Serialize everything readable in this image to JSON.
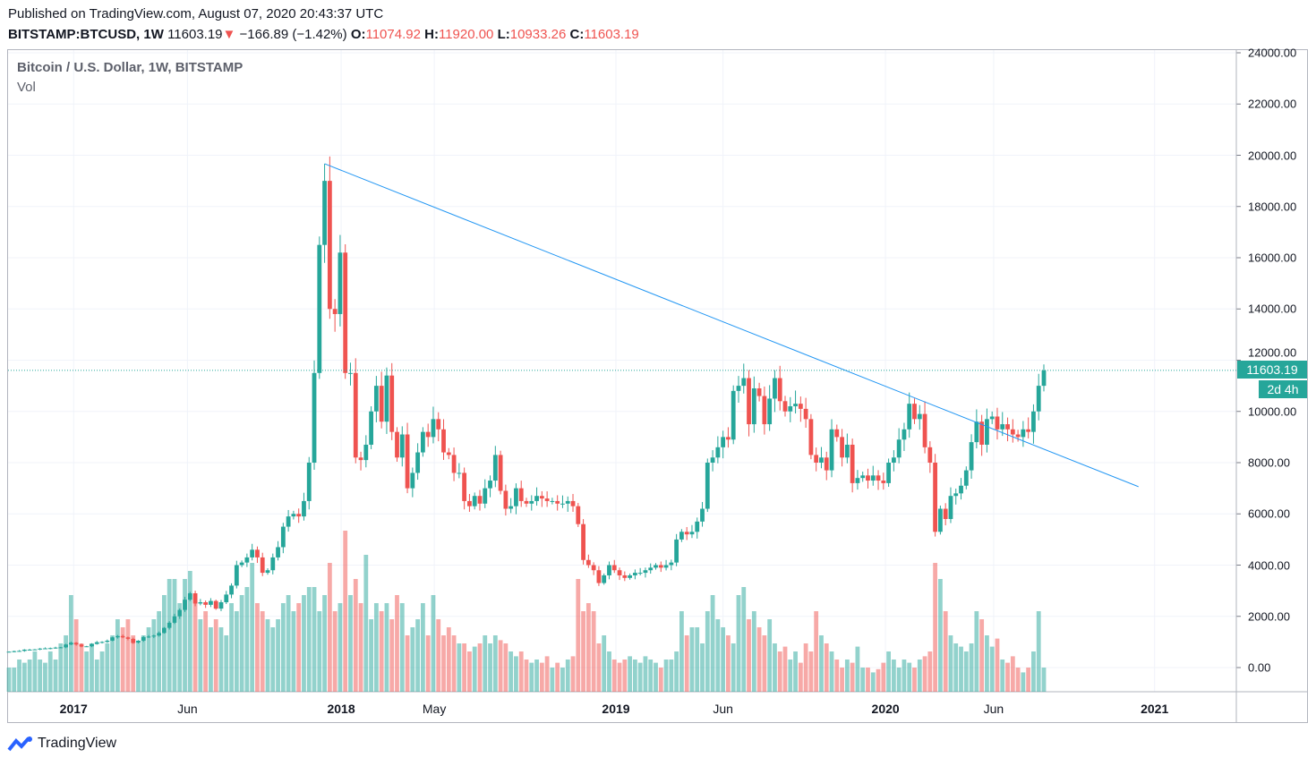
{
  "header": {
    "published": "Published on TradingView.com, August 07, 2020 20:43:37 UTC",
    "symbol": "BITSTAMP:BTCUSD, 1W",
    "last": "11603.19",
    "change": "−166.89 (−1.42%)",
    "o_label": "O:",
    "o": "11074.92",
    "h_label": "H:",
    "h": "11920.00",
    "l_label": "L:",
    "l": "10933.26",
    "c_label": "C:",
    "c": "11603.19"
  },
  "legend": {
    "title": "Bitcoin / U.S. Dollar, 1W, BITSTAMP",
    "vol": "Vol"
  },
  "price_label": "11603.19",
  "countdown": "2d 4h",
  "footer": {
    "brand": "TradingView"
  },
  "colors": {
    "up": "#26a69a",
    "down": "#ef5350",
    "trendline": "#2196f3"
  },
  "chart_data": {
    "type": "candlestick",
    "title": "Bitcoin / U.S. Dollar, 1W, BITSTAMP",
    "ylim": [
      -1000,
      24500
    ],
    "yticks": [
      0,
      2000,
      4000,
      6000,
      8000,
      10000,
      12000,
      14000,
      16000,
      18000,
      20000,
      22000,
      24000
    ],
    "xticks": [
      {
        "label": "2017",
        "week": 12.5,
        "major": true
      },
      {
        "label": "Jun",
        "week": 34.5,
        "major": false
      },
      {
        "label": "2018",
        "week": 64.2,
        "major": true
      },
      {
        "label": "May",
        "week": 82.2,
        "major": false
      },
      {
        "label": "2019",
        "week": 117.3,
        "major": true
      },
      {
        "label": "Jun",
        "week": 138,
        "major": false
      },
      {
        "label": "2020",
        "week": 169.4,
        "major": true
      },
      {
        "label": "Jun",
        "week": 190.3,
        "major": false
      },
      {
        "label": "2021",
        "week": 221.4,
        "major": true
      }
    ],
    "last_price": 11603.19,
    "trendline": {
      "from": {
        "week": 61,
        "price": 19670
      },
      "to": {
        "week": 218.3,
        "price": 7060
      }
    },
    "close": [
      620,
      640,
      650,
      700,
      700,
      710,
      740,
      750,
      760,
      780,
      790,
      900,
      970,
      900,
      820,
      830,
      920,
      990,
      1000,
      1050,
      1180,
      1230,
      1180,
      1120,
      960,
      1050,
      1190,
      1210,
      1250,
      1350,
      1550,
      1750,
      2000,
      2250,
      2650,
      2900,
      2500,
      2550,
      2450,
      2600,
      2300,
      2550,
      2850,
      3200,
      4000,
      4100,
      4300,
      4600,
      4300,
      3700,
      3800,
      4300,
      4700,
      5500,
      5900,
      6000,
      5900,
      6500,
      8000,
      11500,
      16500,
      19000,
      14000,
      13800,
      16200,
      11500,
      11500,
      8200,
      8100,
      8700,
      10000,
      11000,
      9600,
      11400,
      9200,
      8200,
      9100,
      7000,
      7600,
      8400,
      9200,
      9000,
      9700,
      9300,
      8400,
      8300,
      7600,
      7600,
      6500,
      6300,
      6700,
      6400,
      7000,
      7300,
      8300,
      6900,
      6200,
      6300,
      7000,
      6500,
      6400,
      6500,
      6700,
      6600,
      6500,
      6500,
      6400,
      6400,
      6500,
      6300,
      5600,
      4200,
      4000,
      3800,
      3300,
      3600,
      4000,
      3800,
      3600,
      3500,
      3600,
      3700,
      3700,
      3800,
      3900,
      4000,
      3900,
      4000,
      4100,
      5000,
      5300,
      5200,
      5300,
      5700,
      6200,
      8000,
      8200,
      8600,
      9000,
      8900,
      10800,
      11000,
      11300,
      9500,
      10900,
      10600,
      9500,
      10500,
      11300,
      10400,
      10000,
      10200,
      10300,
      10100,
      9700,
      8300,
      8000,
      8200,
      7700,
      9300,
      9000,
      8200,
      8700,
      7200,
      7400,
      7500,
      7300,
      7500,
      7300,
      7200,
      8000,
      8200,
      8900,
      9300,
      10300,
      9700,
      9900,
      8600,
      8000,
      5300,
      6200,
      5800,
      6700,
      6800,
      7100,
      7700,
      8800,
      9600,
      8700,
      9700,
      9800,
      9300,
      9500,
      9300,
      9100,
      9000,
      9300,
      9200,
      10000,
      11000,
      11603.19
    ],
    "volume_relative": [
      15,
      15,
      20,
      18,
      20,
      25,
      20,
      18,
      25,
      20,
      30,
      35,
      60,
      45,
      30,
      25,
      30,
      20,
      25,
      30,
      35,
      45,
      40,
      45,
      35,
      30,
      35,
      40,
      45,
      50,
      60,
      70,
      70,
      55,
      70,
      75,
      60,
      45,
      50,
      40,
      45,
      40,
      35,
      55,
      50,
      60,
      65,
      80,
      55,
      50,
      45,
      40,
      45,
      55,
      60,
      50,
      55,
      60,
      65,
      65,
      50,
      60,
      80,
      50,
      55,
      100,
      60,
      70,
      55,
      85,
      45,
      55,
      50,
      55,
      45,
      60,
      55,
      35,
      40,
      45,
      55,
      35,
      60,
      45,
      35,
      40,
      35,
      30,
      30,
      25,
      28,
      30,
      35,
      30,
      35,
      32,
      30,
      25,
      22,
      25,
      20,
      18,
      20,
      18,
      22,
      15,
      18,
      15,
      20,
      22,
      70,
      50,
      55,
      50,
      30,
      35,
      25,
      20,
      18,
      20,
      22,
      20,
      18,
      22,
      20,
      18,
      15,
      20,
      20,
      25,
      50,
      35,
      40,
      40,
      30,
      50,
      60,
      45,
      40,
      35,
      30,
      60,
      65,
      45,
      50,
      40,
      35,
      45,
      30,
      25,
      28,
      20,
      25,
      18,
      30,
      25,
      50,
      35,
      30,
      25,
      20,
      15,
      20,
      18,
      28,
      15,
      15,
      12,
      14,
      18,
      25,
      20,
      15,
      20,
      18,
      15,
      20,
      22,
      25,
      80,
      70,
      50,
      35,
      30,
      28,
      25,
      30,
      50,
      45,
      35,
      28,
      33,
      20,
      18,
      22,
      15,
      12,
      15,
      25,
      50,
      15
    ]
  }
}
